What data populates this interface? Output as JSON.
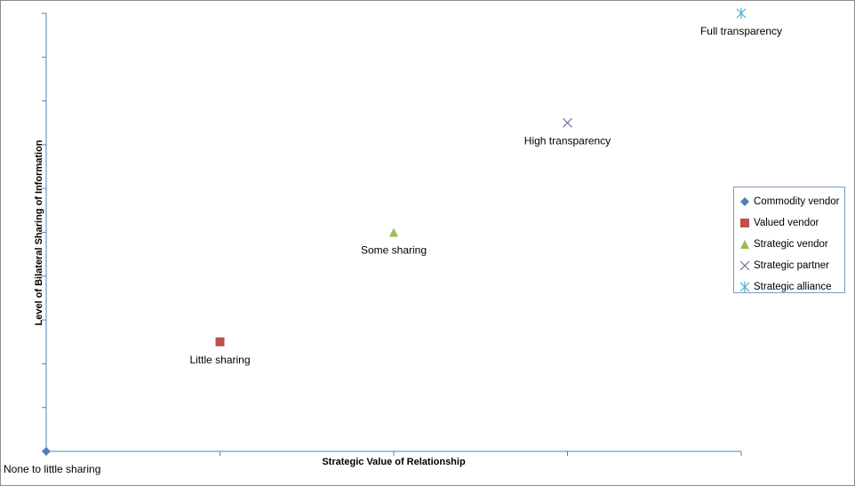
{
  "chart_data": {
    "type": "scatter",
    "title": "",
    "xlabel": "Strategic Value of Relationship",
    "ylabel": "Level of Bilateral Sharing of Information",
    "xlim": [
      0,
      4
    ],
    "ylim": [
      0,
      4
    ],
    "grid": false,
    "legend_position": "right",
    "series": [
      {
        "name": "Commodity vendor",
        "marker": "diamond",
        "color": "#4f81bd",
        "x": 0,
        "y": 0,
        "label": "None to little sharing"
      },
      {
        "name": "Valued vendor",
        "marker": "square",
        "color": "#c0504d",
        "x": 1,
        "y": 1,
        "label": "Little sharing"
      },
      {
        "name": "Strategic vendor",
        "marker": "triangle",
        "color": "#9bbb59",
        "x": 2,
        "y": 2,
        "label": "Some sharing"
      },
      {
        "name": "Strategic partner",
        "marker": "x",
        "color": "#8064a2",
        "x": 3,
        "y": 3,
        "label": "High transparency"
      },
      {
        "name": "Strategic alliance",
        "marker": "star",
        "color": "#4bacc6",
        "x": 4,
        "y": 4,
        "label": "Full transparency"
      }
    ]
  }
}
